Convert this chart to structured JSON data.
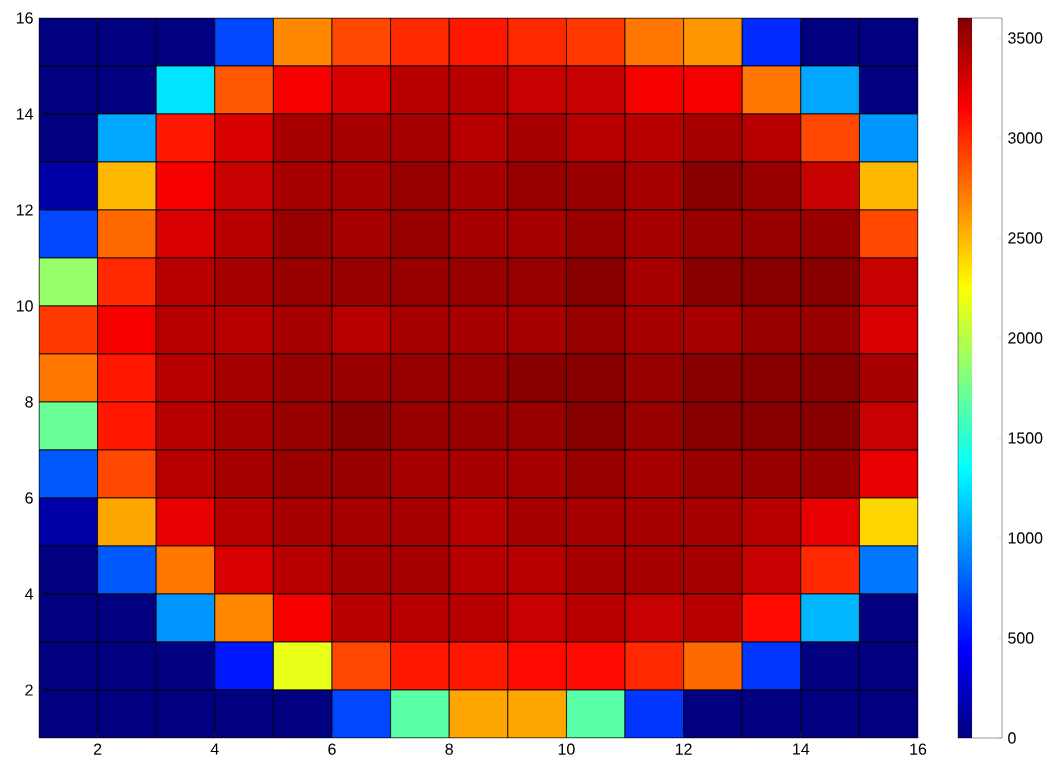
{
  "chart_data": {
    "type": "heatmap",
    "x": [
      1.5,
      2.5,
      3.5,
      4.5,
      5.5,
      6.5,
      7.5,
      8.5,
      9.5,
      10.5,
      11.5,
      12.5,
      13.5,
      14.5,
      15.5
    ],
    "y": [
      15.5,
      14.5,
      13.5,
      12.5,
      11.5,
      10.5,
      9.5,
      8.5,
      7.5,
      6.5,
      5.5,
      4.5,
      3.5,
      2.5,
      1.5
    ],
    "cells": [
      [
        0,
        0,
        0,
        700,
        2670,
        2900,
        3010,
        3070,
        3010,
        2950,
        2730,
        2620,
        590,
        0,
        0
      ],
      [
        0,
        0,
        1260,
        2840,
        3180,
        3290,
        3400,
        3400,
        3350,
        3350,
        3180,
        3180,
        2730,
        1040,
        0
      ],
      [
        0,
        1040,
        3070,
        3290,
        3460,
        3460,
        3460,
        3400,
        3460,
        3400,
        3400,
        3460,
        3400,
        2900,
        980
      ],
      [
        140,
        2500,
        3180,
        3350,
        3460,
        3460,
        3510,
        3460,
        3510,
        3510,
        3460,
        3570,
        3510,
        3350,
        2500
      ],
      [
        700,
        2780,
        3290,
        3400,
        3510,
        3460,
        3510,
        3460,
        3460,
        3510,
        3460,
        3510,
        3510,
        3510,
        2900
      ],
      [
        1880,
        3010,
        3400,
        3460,
        3510,
        3510,
        3510,
        3510,
        3510,
        3570,
        3460,
        3570,
        3570,
        3570,
        3350
      ],
      [
        2950,
        3180,
        3400,
        3400,
        3460,
        3400,
        3460,
        3460,
        3460,
        3510,
        3460,
        3460,
        3510,
        3510,
        3290
      ],
      [
        2730,
        3070,
        3400,
        3460,
        3510,
        3510,
        3510,
        3510,
        3570,
        3570,
        3510,
        3570,
        3570,
        3570,
        3460
      ],
      [
        1720,
        3070,
        3400,
        3460,
        3510,
        3570,
        3510,
        3510,
        3510,
        3570,
        3510,
        3570,
        3570,
        3570,
        3350
      ],
      [
        760,
        2900,
        3400,
        3460,
        3510,
        3510,
        3460,
        3460,
        3460,
        3510,
        3460,
        3510,
        3510,
        3510,
        3230
      ],
      [
        140,
        2560,
        3230,
        3400,
        3460,
        3460,
        3460,
        3400,
        3460,
        3460,
        3460,
        3460,
        3400,
        3230,
        2390
      ],
      [
        0,
        760,
        2730,
        3290,
        3400,
        3460,
        3460,
        3400,
        3400,
        3460,
        3460,
        3460,
        3350,
        3010,
        870
      ],
      [
        0,
        0,
        980,
        2670,
        3180,
        3400,
        3400,
        3400,
        3350,
        3400,
        3350,
        3400,
        3120,
        1100,
        0
      ],
      [
        0,
        0,
        0,
        530,
        2170,
        2900,
        3070,
        3070,
        3120,
        3120,
        3010,
        2780,
        640,
        0,
        0
      ],
      [
        0,
        0,
        0,
        0,
        0,
        700,
        1660,
        2560,
        2560,
        1660,
        640,
        0,
        0,
        0,
        0
      ]
    ],
    "xlim": [
      1,
      16
    ],
    "xticks": [
      2,
      4,
      6,
      8,
      10,
      12,
      14,
      16
    ],
    "ylim": [
      1,
      16
    ],
    "yticks": [
      2,
      4,
      6,
      8,
      10,
      12,
      14,
      16
    ],
    "clim": [
      0,
      3600
    ],
    "cticks": [
      0,
      500,
      1000,
      1500,
      2000,
      2500,
      3000,
      3500
    ]
  }
}
